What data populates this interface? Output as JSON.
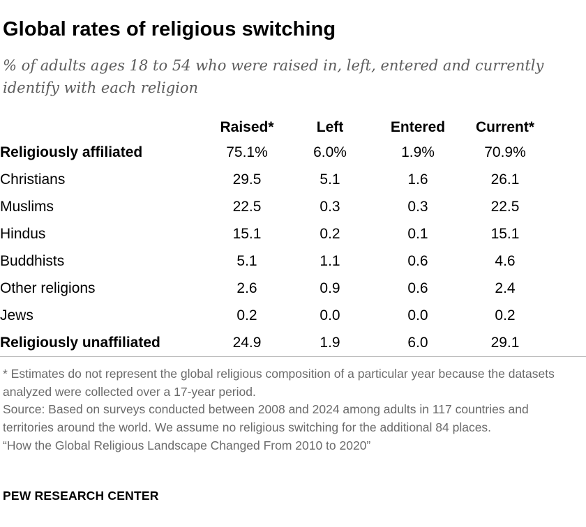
{
  "title": "Global rates of religious switching",
  "subtitle": "% of adults ages 18 to 54 who were raised in, left, entered and currently identify with each religion",
  "chart_data": {
    "type": "table",
    "columns": [
      "Raised*",
      "Left",
      "Entered",
      "Current*"
    ],
    "rows": [
      {
        "label": "Religiously affiliated",
        "values": [
          "75.1%",
          "6.0%",
          "1.9%",
          "70.9%"
        ]
      },
      {
        "label": "Christians",
        "values": [
          "29.5",
          "5.1",
          "1.6",
          "26.1"
        ]
      },
      {
        "label": "Muslims",
        "values": [
          "22.5",
          "0.3",
          "0.3",
          "22.5"
        ]
      },
      {
        "label": "Hindus",
        "values": [
          "15.1",
          "0.2",
          "0.1",
          "15.1"
        ]
      },
      {
        "label": "Buddhists",
        "values": [
          "5.1",
          "1.1",
          "0.6",
          "4.6"
        ]
      },
      {
        "label": "Other religions",
        "values": [
          "2.6",
          "0.9",
          "0.6",
          "2.4"
        ]
      },
      {
        "label": "Jews",
        "values": [
          "0.2",
          "0.0",
          "0.0",
          "0.2"
        ]
      },
      {
        "label": "Religiously unaffiliated",
        "values": [
          "24.9",
          "1.9",
          "6.0",
          "29.1"
        ]
      }
    ]
  },
  "notes": {
    "footnote": "* Estimates do not represent the global religious composition of a particular year because the datasets analyzed were collected over a 17-year period.",
    "source": "Source: Based on surveys conducted between 2008 and 2024 among adults in 117 countries and territories around the world. We assume no religious switching for the additional 84 places.",
    "report": "“How the Global Religious Landscape Changed From 2010 to 2020”"
  },
  "brand": "PEW RESEARCH CENTER"
}
